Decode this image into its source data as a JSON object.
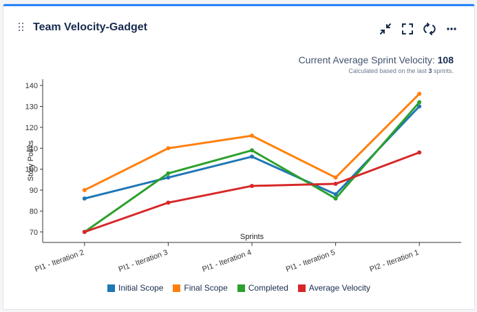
{
  "gadget": {
    "title": "Team Velocity-Gadget",
    "icons": [
      "minimize-icon",
      "fullscreen-icon",
      "refresh-icon",
      "more-icon"
    ]
  },
  "summary": {
    "label": "Current Average Sprint Velocity:",
    "value": "108",
    "note_prefix": "Calculated based on the last",
    "note_count": "3",
    "note_suffix": "sprints."
  },
  "colors": {
    "accent": "#2684ff",
    "initial_scope": "#1f77b4",
    "final_scope": "#ff7f0e",
    "completed": "#2ca02c",
    "average_velocity": "#d62728"
  },
  "chart_data": {
    "type": "line",
    "xlabel": "Sprints",
    "ylabel": "Story Points",
    "categories": [
      "PI1 - Iteration 2",
      "PI1 - Iteration 3",
      "PI1 - Iteration 4",
      "PI1 - Iteration 5",
      "PI2 - Iteration 1"
    ],
    "ylim": [
      65,
      143
    ],
    "yticks": [
      70,
      80,
      90,
      100,
      110,
      120,
      130,
      140
    ],
    "grid": false,
    "legend_position": "bottom",
    "series": [
      {
        "name": "Initial Scope",
        "color": "#1f77b4",
        "values": [
          86,
          96,
          106,
          88,
          130
        ]
      },
      {
        "name": "Final Scope",
        "color": "#ff7f0e",
        "values": [
          90,
          110,
          116,
          96,
          136
        ]
      },
      {
        "name": "Completed",
        "color": "#2ca02c",
        "values": [
          70,
          98,
          109,
          86,
          132
        ]
      },
      {
        "name": "Average Velocity",
        "color": "#d62728",
        "values": [
          70,
          84,
          92,
          93,
          108
        ]
      }
    ]
  }
}
